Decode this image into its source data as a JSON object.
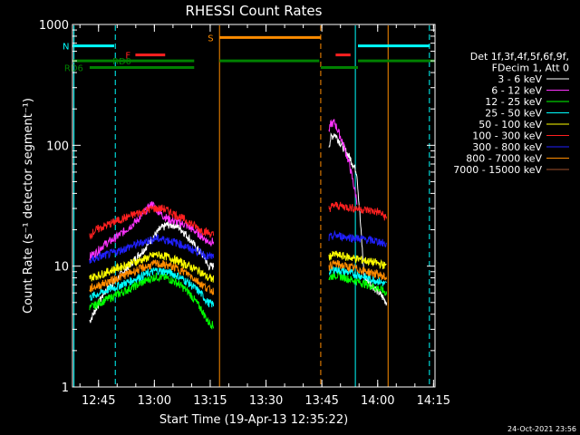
{
  "chart_data": {
    "type": "line",
    "title": "RHESSI Count Rates",
    "xlabel": "Start Time (19-Apr-13 12:35:22)",
    "ylabel": "Count Rate (s⁻¹ detector segment⁻¹)",
    "x_unit": "minutes after 12:35:22",
    "xlim": [
      2.6,
      100
    ],
    "ylim": [
      1,
      1000
    ],
    "yscale": "log",
    "x_ticks": [
      {
        "label": "12:45",
        "value": 9.6
      },
      {
        "label": "13:00",
        "value": 24.6
      },
      {
        "label": "13:15",
        "value": 39.6
      },
      {
        "label": "13:30",
        "value": 54.6
      },
      {
        "label": "13:45",
        "value": 69.6
      },
      {
        "label": "14:00",
        "value": 84.6
      },
      {
        "label": "14:15",
        "value": 99.6
      }
    ],
    "y_ticks": [
      {
        "label": "1",
        "value": 1
      },
      {
        "label": "10",
        "value": 10
      },
      {
        "label": "100",
        "value": 100
      },
      {
        "label": "1000",
        "value": 1000
      }
    ],
    "grid": false,
    "legend_position": "right",
    "legend_header": [
      "Det 1f,3f,4f,5f,6f,9f,",
      "FDecim 1, Att 0"
    ],
    "series": [
      {
        "name": "3 - 6 keV",
        "color": "#ffffff",
        "segments": [
          {
            "x": [
              7.2,
              9,
              11,
              14,
              17,
              20,
              22,
              24,
              26,
              28,
              30,
              32,
              34,
              36,
              38,
              39,
              40.5
            ],
            "y": [
              3.5,
              4.5,
              6,
              7.5,
              9.5,
              12,
              14,
              17,
              20,
              22,
              22,
              20,
              17,
              14,
              12,
              10,
              10
            ]
          },
          {
            "x": [
              71.5,
              72,
              73,
              75,
              77,
              79,
              81,
              83,
              84,
              85,
              86,
              87
            ],
            "y": [
              100,
              115,
              125,
              100,
              80,
              60,
              8,
              7,
              6.5,
              6,
              5.5,
              5
            ]
          }
        ]
      },
      {
        "name": "6 - 12 keV",
        "color": "#ff33ff",
        "segments": [
          {
            "x": [
              7.2,
              9,
              11,
              14,
              17,
              20,
              22,
              24,
              25,
              27,
              29,
              31,
              33,
              35,
              37,
              39,
              40.5
            ],
            "y": [
              12,
              13,
              15,
              17,
              20,
              24,
              28,
              33,
              30,
              26,
              24,
              23,
              22,
              20,
              18,
              16,
              16
            ]
          },
          {
            "x": [
              71.5,
              72,
              73,
              75,
              77,
              79
            ],
            "y": [
              130,
              150,
              155,
              110,
              70,
              35
            ]
          }
        ]
      },
      {
        "name": "12 - 25 keV",
        "color": "#00ff00",
        "segments": [
          {
            "x": [
              7.2,
              10,
              14,
              18,
              22,
              25,
              28,
              31,
              34,
              37,
              39,
              40.5
            ],
            "y": [
              4.5,
              5,
              5.7,
              6.5,
              7.5,
              8.2,
              8,
              7.2,
              6,
              4.5,
              3.5,
              3.2
            ]
          },
          {
            "x": [
              71.5,
              73,
              76,
              79,
              82,
              85,
              87
            ],
            "y": [
              8,
              8.5,
              8,
              7.5,
              7,
              6.5,
              6
            ]
          }
        ]
      },
      {
        "name": "25 - 50 keV",
        "color": "#00ffff",
        "segments": [
          {
            "x": [
              7.2,
              10,
              14,
              18,
              22,
              25,
              28,
              31,
              34,
              37,
              39,
              40.5
            ],
            "y": [
              5.5,
              6,
              6.7,
              7.5,
              8.5,
              9.2,
              9,
              8.3,
              7.2,
              6,
              5,
              4.8
            ]
          },
          {
            "x": [
              71.5,
              73,
              76,
              79,
              82,
              85,
              87
            ],
            "y": [
              9,
              9.5,
              9,
              8.5,
              8,
              7.5,
              7
            ]
          }
        ]
      },
      {
        "name": "50 - 100 keV",
        "color": "#ffff00",
        "segments": [
          {
            "x": [
              7.2,
              10,
              14,
              18,
              22,
              25,
              28,
              31,
              34,
              37,
              39,
              40.5
            ],
            "y": [
              8,
              8.5,
              9.5,
              10.5,
              11.5,
              12.5,
              12,
              11,
              10,
              9,
              8,
              7.8
            ]
          },
          {
            "x": [
              71.5,
              73,
              76,
              79,
              82,
              85,
              87
            ],
            "y": [
              12,
              12.5,
              12,
              11.5,
              11,
              10.5,
              10
            ]
          }
        ]
      },
      {
        "name": "100 - 300 keV",
        "color": "#ff2020",
        "segments": [
          {
            "x": [
              7.2,
              9,
              12,
              15,
              18,
              21,
              24,
              27,
              29,
              31,
              33,
              35,
              37,
              39,
              40.5
            ],
            "y": [
              18,
              20,
              22,
              24,
              26,
              28,
              30,
              30,
              28,
              26,
              24,
              22,
              20,
              19,
              18
            ]
          },
          {
            "x": [
              71.5,
              73,
              76,
              79,
              82,
              85,
              87
            ],
            "y": [
              30,
              32,
              31,
              30,
              29,
              28,
              25
            ]
          }
        ]
      },
      {
        "name": "300 - 800 keV",
        "color": "#2020ff",
        "segments": [
          {
            "x": [
              7.2,
              10,
              14,
              18,
              22,
              25,
              28,
              31,
              34,
              37,
              39,
              40.5
            ],
            "y": [
              11,
              12,
              13,
              14.5,
              16,
              17,
              16.5,
              15.5,
              14,
              13,
              12,
              12
            ]
          },
          {
            "x": [
              71.5,
              73,
              76,
              79,
              82,
              85,
              87
            ],
            "y": [
              17,
              18,
              17.5,
              17,
              16.5,
              16,
              15
            ]
          }
        ]
      },
      {
        "name": "800 - 7000 keV",
        "color": "#ff8c00",
        "segments": [
          {
            "x": [
              7.2,
              10,
              14,
              18,
              22,
              25,
              28,
              31,
              34,
              37,
              39,
              40.5
            ],
            "y": [
              6.5,
              7,
              7.8,
              8.8,
              9.8,
              10.5,
              10.2,
              9.5,
              8.5,
              7.2,
              6.5,
              6.2
            ]
          },
          {
            "x": [
              71.5,
              73,
              76,
              79,
              82,
              85,
              87
            ],
            "y": [
              10,
              10.5,
              10,
              9.5,
              9,
              8.5,
              8
            ]
          }
        ]
      },
      {
        "name": "7000 - 15000 keV",
        "color": "#a0522d",
        "segments": []
      }
    ],
    "vertical_lines": [
      {
        "x": 3.0,
        "color": "#00ffff",
        "style": "solid"
      },
      {
        "x": 14.1,
        "color": "#00ffff",
        "style": "dashed"
      },
      {
        "x": 42.1,
        "color": "#ff8c00",
        "style": "solid"
      },
      {
        "x": 69.3,
        "color": "#ff8c00",
        "style": "dashed"
      },
      {
        "x": 78.6,
        "color": "#00ffff",
        "style": "solid"
      },
      {
        "x": 87.4,
        "color": "#ff8c00",
        "style": "solid"
      },
      {
        "x": 98.5,
        "color": "#00ffff",
        "style": "dashed"
      }
    ],
    "flag_bars": [
      {
        "label": "N",
        "color": "#00ffff",
        "y": 665,
        "segments": [
          [
            2.6,
            13.8
          ],
          [
            79.3,
            98.6
          ]
        ]
      },
      {
        "label": "F",
        "color": "#ff2020",
        "y": 560,
        "segments": [
          [
            19.5,
            27.5
          ],
          [
            73.3,
            77.3
          ]
        ]
      },
      {
        "label": "S",
        "color": "#ff8c00",
        "y": 780,
        "segments": [
          [
            42.1,
            69.3
          ]
        ]
      },
      {
        "label": "RD0",
        "color": "#008000",
        "y": 500,
        "segments": [
          [
            2.6,
            35.3
          ],
          [
            42.1,
            68.9
          ],
          [
            79.3,
            99.8
          ]
        ]
      },
      {
        "label": "RD6",
        "color": "#008000",
        "y": 440,
        "segments": [
          [
            7.2,
            35.3
          ],
          [
            69.3,
            79.3
          ]
        ]
      }
    ]
  },
  "footer": {
    "timestamp": "24-Oct-2021 23:56"
  }
}
